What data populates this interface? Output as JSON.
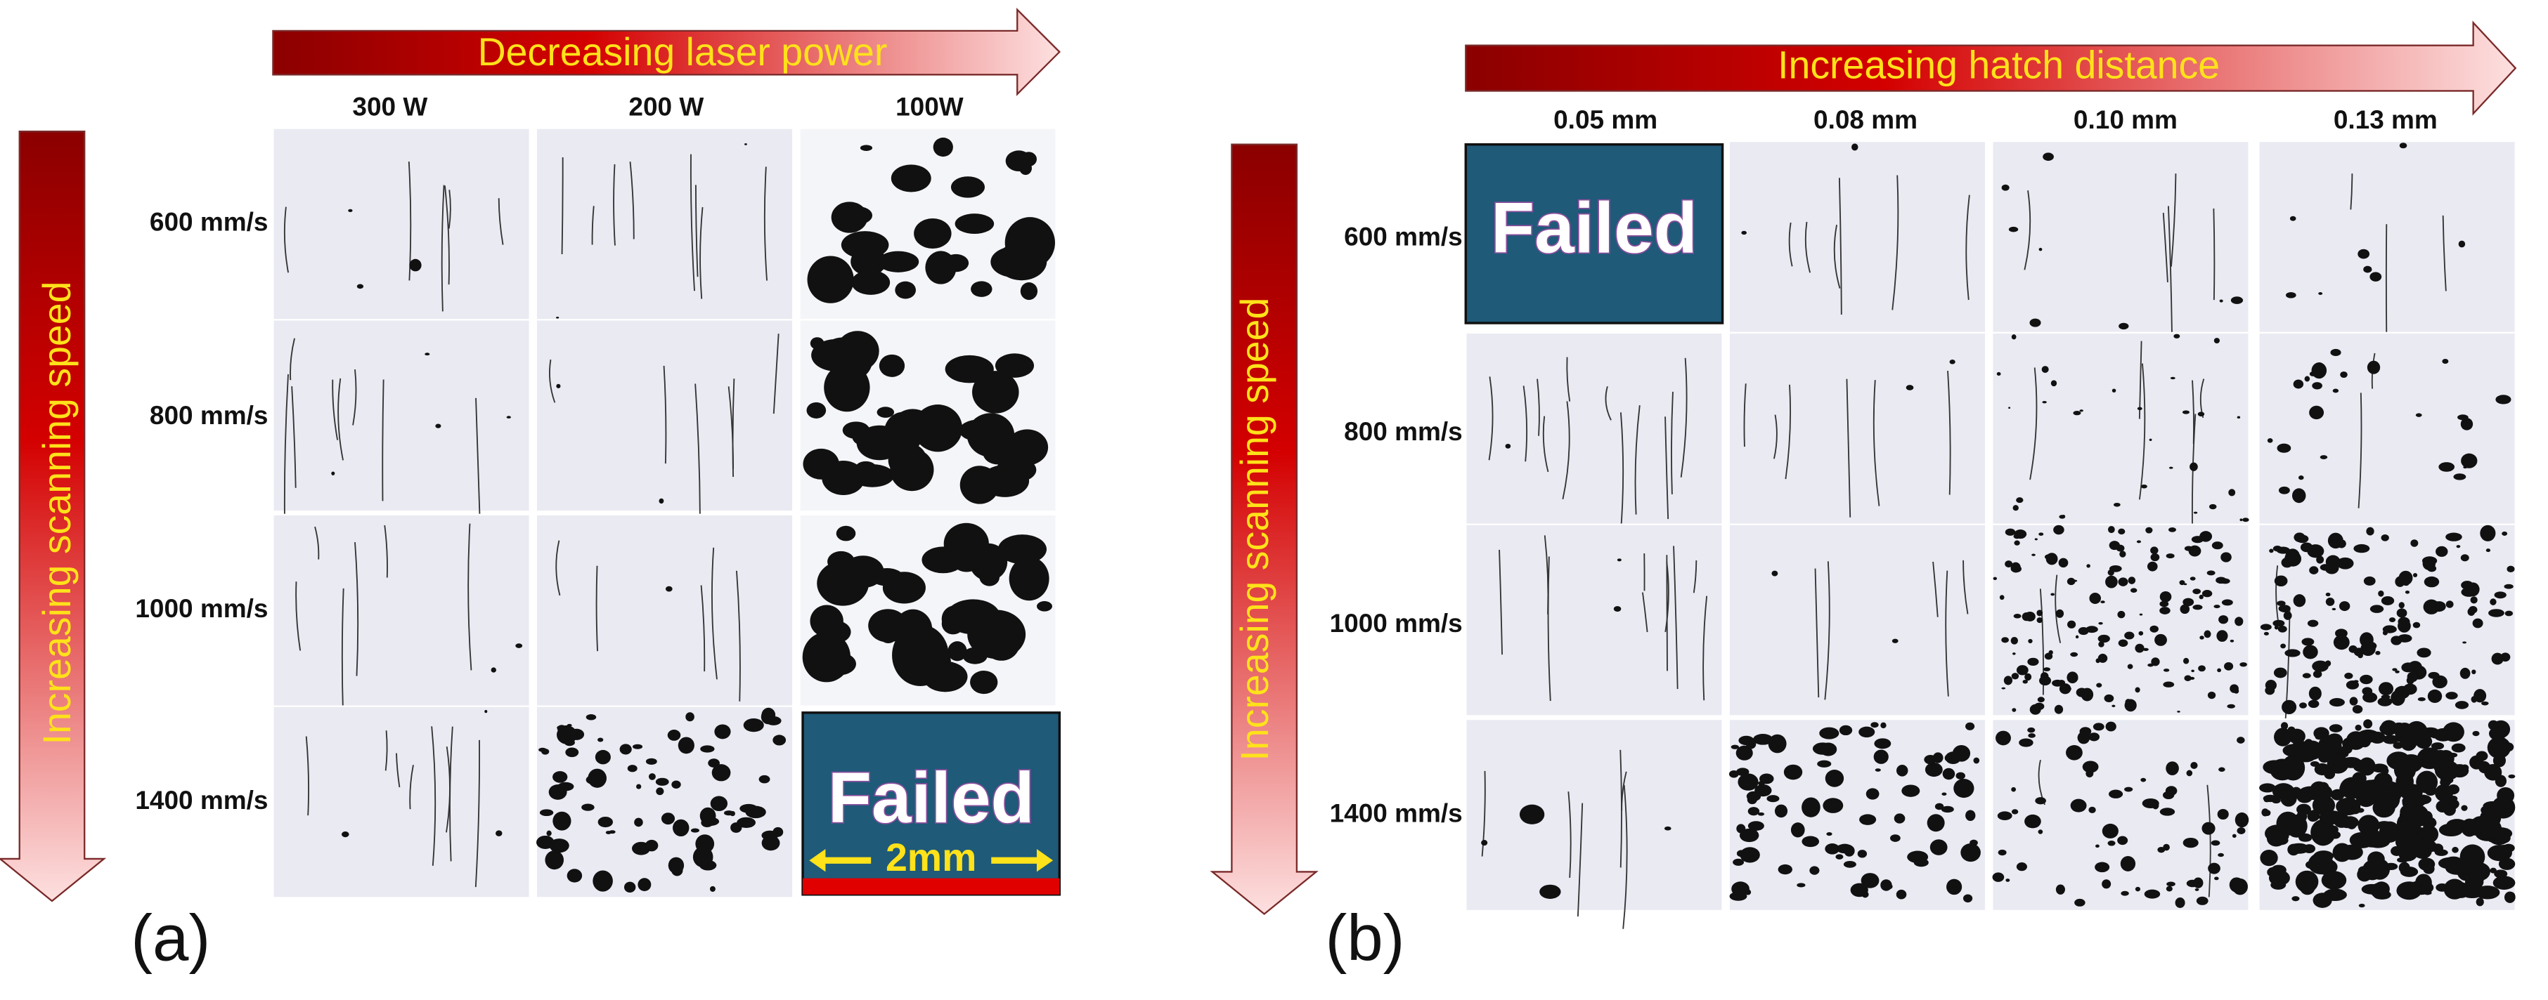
{
  "panel_a": {
    "arrow_label": "Decreasing laser power",
    "side_label": "Increasing scanning speed",
    "columns": [
      "300 W",
      "200 W",
      "100W"
    ],
    "rows": [
      "600 mm/s",
      "800 mm/s",
      "1000 mm/s",
      "1400 mm/s"
    ],
    "failed_label": "Failed",
    "scale_label": "2mm",
    "panel_label": "(a)"
  },
  "panel_b": {
    "arrow_label": "Increasing hatch distance",
    "side_label": "Increasing scanning speed",
    "columns": [
      "0.05 mm",
      "0.08 mm",
      "0.10 mm",
      "0.13 mm"
    ],
    "rows": [
      "600 mm/s",
      "800 mm/s",
      "1000 mm/s",
      "1400 mm/s"
    ],
    "failed_label": "Failed",
    "panel_label": "(b)"
  }
}
